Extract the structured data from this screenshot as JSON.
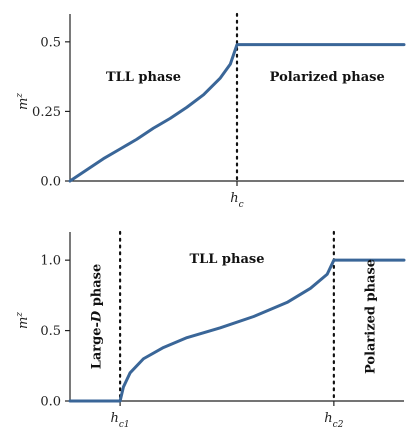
{
  "chart_data": [
    {
      "type": "line",
      "ylabel": "m^z",
      "ylim": [
        0,
        0.6
      ],
      "xlim": [
        0,
        1
      ],
      "yticks": [
        {
          "value": 0.0,
          "label": "0.0"
        },
        {
          "value": 0.25,
          "label": "0.25"
        },
        {
          "value": 0.5,
          "label": "0.5"
        }
      ],
      "xticks": [
        {
          "value": 0.5,
          "label": "h_c"
        }
      ],
      "critical_lines": [
        {
          "x": 0.5,
          "label": "h_c"
        }
      ],
      "series": [
        {
          "color": "#3a6698",
          "x": [
            0.0,
            0.05,
            0.1,
            0.15,
            0.2,
            0.25,
            0.3,
            0.35,
            0.4,
            0.45,
            0.48,
            0.5,
            0.6,
            0.7,
            0.8,
            0.9,
            1.0
          ],
          "y": [
            0.0,
            0.04,
            0.08,
            0.115,
            0.15,
            0.19,
            0.225,
            0.265,
            0.31,
            0.37,
            0.42,
            0.49,
            0.49,
            0.49,
            0.49,
            0.49,
            0.49
          ]
        }
      ],
      "annotations": [
        {
          "text": "TLL phase",
          "x": 0.22,
          "y": 0.36
        },
        {
          "text": "Polarized phase",
          "x": 0.77,
          "y": 0.36
        }
      ]
    },
    {
      "type": "line",
      "ylabel": "m^z",
      "ylim": [
        0,
        1.2
      ],
      "xlim": [
        0,
        1
      ],
      "yticks": [
        {
          "value": 0.0,
          "label": "0.0"
        },
        {
          "value": 0.5,
          "label": "0.5"
        },
        {
          "value": 1.0,
          "label": "1.0"
        }
      ],
      "xticks": [
        {
          "value": 0.15,
          "label": "h_c1"
        },
        {
          "value": 0.79,
          "label": "h_c2"
        }
      ],
      "critical_lines": [
        {
          "x": 0.15,
          "label": "h_c1"
        },
        {
          "x": 0.79,
          "label": "h_c2"
        }
      ],
      "series": [
        {
          "color": "#3a6698",
          "x": [
            0.0,
            0.15,
            0.16,
            0.18,
            0.22,
            0.28,
            0.35,
            0.45,
            0.55,
            0.65,
            0.72,
            0.77,
            0.79,
            0.85,
            0.9,
            1.0
          ],
          "y": [
            0.0,
            0.0,
            0.1,
            0.2,
            0.3,
            0.38,
            0.45,
            0.52,
            0.6,
            0.7,
            0.8,
            0.9,
            1.0,
            1.0,
            1.0,
            1.0
          ]
        }
      ],
      "annotations": [
        {
          "text": "TLL phase",
          "x": 0.47,
          "y": 0.98
        },
        {
          "text": "Large-",
          "italic_part": "D",
          "suffix": " phase",
          "x": 0.08,
          "y": 0.6,
          "rotated": true
        },
        {
          "text": "Polarized phase",
          "x": 0.9,
          "y": 0.6,
          "rotated": true
        }
      ]
    }
  ]
}
